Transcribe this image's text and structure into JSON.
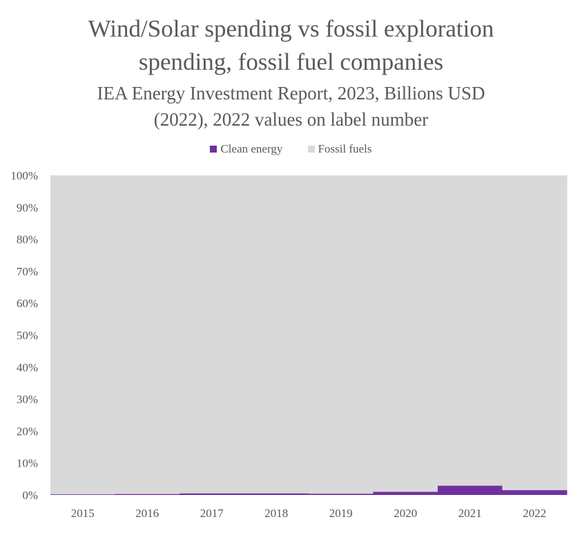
{
  "chart_data": {
    "type": "bar",
    "stacked": "percent",
    "title": "Wind/Solar spending vs fossil exploration spending, fossil fuel companies",
    "subtitle": "IEA Energy Investment Report, 2023, Billions USD (2022), 2022 values on label number",
    "xlabel": "",
    "ylabel": "",
    "categories": [
      "2015",
      "2016",
      "2017",
      "2018",
      "2019",
      "2020",
      "2021",
      "2022"
    ],
    "series": [
      {
        "name": "Clean energy",
        "color": "#7030A0",
        "values": [
          0.2,
          0.3,
          0.5,
          0.5,
          0.4,
          1.0,
          2.9,
          1.5
        ]
      },
      {
        "name": "Fossil fuels",
        "color": "#D9D9D9",
        "values": [
          99.8,
          99.7,
          99.5,
          99.5,
          99.6,
          99.0,
          97.1,
          98.5
        ]
      }
    ],
    "ylim": [
      0,
      100
    ],
    "yticks": [
      "0%",
      "10%",
      "20%",
      "30%",
      "40%",
      "50%",
      "60%",
      "70%",
      "80%",
      "90%",
      "100%"
    ],
    "legend_position": "top",
    "grid": false
  }
}
